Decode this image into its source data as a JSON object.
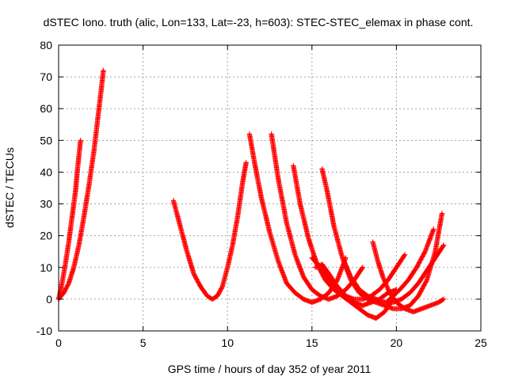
{
  "chart_data": {
    "type": "scatter",
    "title": "dSTEC Iono. truth (alic, Lon=133, Lat=-23, h=603): STEC-STEC_elemax in phase cont.",
    "xlabel": "GPS time / hours of day 352 of year 2011",
    "ylabel": "dSTEC  / TECUs",
    "xlim": [
      0,
      25
    ],
    "ylim": [
      -10,
      80
    ],
    "x_ticks": [
      0,
      5,
      10,
      15,
      20,
      25
    ],
    "y_ticks": [
      -10,
      0,
      10,
      20,
      30,
      40,
      50,
      60,
      70,
      80
    ],
    "grid": true,
    "marker": "plus",
    "color": "#ff0000",
    "series": [
      {
        "x": [
          0.0,
          0.2,
          0.4,
          0.6,
          0.8,
          1.0,
          1.1,
          1.2,
          1.3
        ],
        "y": [
          0,
          5,
          11,
          18,
          26,
          34,
          40,
          45,
          50
        ]
      },
      {
        "x": [
          0.0,
          0.3,
          0.6,
          0.9,
          1.2,
          1.5,
          1.8,
          2.1,
          2.3,
          2.5,
          2.65
        ],
        "y": [
          0,
          2,
          5,
          10,
          17,
          26,
          36,
          47,
          56,
          65,
          72
        ]
      },
      {
        "x": [
          6.8,
          7.2,
          7.6,
          8.0,
          8.4,
          8.8,
          9.1,
          9.4,
          9.7,
          10.0,
          10.3,
          10.6,
          10.9,
          11.1
        ],
        "y": [
          31,
          23,
          15,
          8,
          4,
          1,
          0,
          1,
          4,
          10,
          17,
          26,
          37,
          43
        ]
      },
      {
        "x": [
          11.3,
          11.6,
          12.0,
          12.5,
          13.0,
          13.5,
          14.0,
          14.5,
          15.0,
          15.5,
          16.0,
          16.5,
          17.0
        ],
        "y": [
          52,
          43,
          32,
          21,
          12,
          5,
          2,
          0,
          -1,
          0,
          2,
          6,
          13
        ]
      },
      {
        "x": [
          12.6,
          13.0,
          13.5,
          14.0,
          14.5,
          15.0,
          15.5,
          16.0,
          16.5,
          17.0,
          17.5,
          18.0
        ],
        "y": [
          52,
          38,
          24,
          14,
          7,
          3,
          1,
          0,
          1,
          3,
          6,
          10
        ]
      },
      {
        "x": [
          13.9,
          14.3,
          14.8,
          15.3,
          15.8,
          16.3,
          16.8,
          17.3,
          17.8,
          18.3,
          18.8,
          19.3,
          19.8
        ],
        "y": [
          42,
          30,
          19,
          11,
          6,
          3,
          1,
          -1,
          -3,
          -5,
          -6,
          -4,
          0
        ]
      },
      {
        "x": [
          15.6,
          15.9,
          16.3,
          16.8,
          17.3,
          17.8,
          18.3,
          18.8,
          19.3,
          19.8,
          20.3,
          20.8,
          21.3,
          21.8,
          22.3,
          22.7
        ],
        "y": [
          41,
          34,
          23,
          13,
          6,
          2,
          0,
          -1,
          -2,
          -3,
          -3,
          -2,
          1,
          6,
          15,
          27
        ]
      },
      {
        "x": [
          15.0,
          15.5,
          16.0,
          16.5,
          17.0,
          17.5,
          18.0,
          18.5,
          19.0,
          19.5,
          20.0,
          20.5
        ],
        "y": [
          13,
          10,
          6,
          3,
          1,
          0,
          0,
          1,
          3,
          6,
          10,
          14
        ]
      },
      {
        "x": [
          15.2,
          15.6,
          16.0,
          16.5,
          17.0,
          17.5,
          18.0,
          18.5,
          19.0,
          19.5,
          20.0
        ],
        "y": [
          10,
          11,
          8,
          4,
          1,
          -1,
          -2,
          -1,
          0,
          2,
          3
        ]
      },
      {
        "x": [
          18.6,
          18.9,
          19.2,
          19.6,
          20.0,
          20.5,
          21.0,
          21.5,
          22.0,
          22.5,
          22.8
        ],
        "y": [
          18,
          12,
          7,
          2,
          -1,
          -3,
          -4,
          -3,
          -2,
          -1,
          0
        ]
      },
      {
        "x": [
          16.9,
          17.3,
          17.8,
          18.3,
          18.8,
          19.3,
          19.8,
          20.3,
          20.8,
          21.3,
          21.8,
          22.3,
          22.8
        ],
        "y": [
          12,
          7,
          3,
          1,
          0,
          -1,
          -1,
          0,
          2,
          5,
          9,
          13,
          17
        ]
      },
      {
        "x": [
          19.4,
          19.8,
          20.2,
          20.7,
          21.2,
          21.7,
          22.2
        ],
        "y": [
          -1,
          1,
          3,
          6,
          10,
          15,
          22
        ]
      }
    ]
  }
}
